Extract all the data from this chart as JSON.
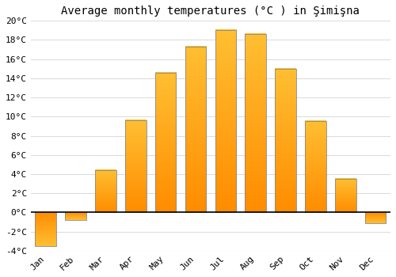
{
  "title": "Average monthly temperatures (°C ) in Şimişna",
  "months": [
    "Jan",
    "Feb",
    "Mar",
    "Apr",
    "May",
    "Jun",
    "Jul",
    "Aug",
    "Sep",
    "Oct",
    "Nov",
    "Dec"
  ],
  "values": [
    -3.5,
    -0.8,
    4.4,
    9.6,
    14.6,
    17.3,
    19.0,
    18.6,
    15.0,
    9.5,
    3.5,
    -1.1
  ],
  "bar_color_top": "#FFB830",
  "bar_color_bottom": "#FF8C00",
  "bar_edge_color": "#888888",
  "ylim": [
    -4,
    20
  ],
  "yticks": [
    -4,
    -2,
    0,
    2,
    4,
    6,
    8,
    10,
    12,
    14,
    16,
    18,
    20
  ],
  "plot_bg_color": "#FFFFFF",
  "fig_bg_color": "#FFFFFF",
  "grid_color": "#DDDDDD",
  "zero_line_color": "#000000",
  "title_fontsize": 10,
  "tick_fontsize": 8
}
